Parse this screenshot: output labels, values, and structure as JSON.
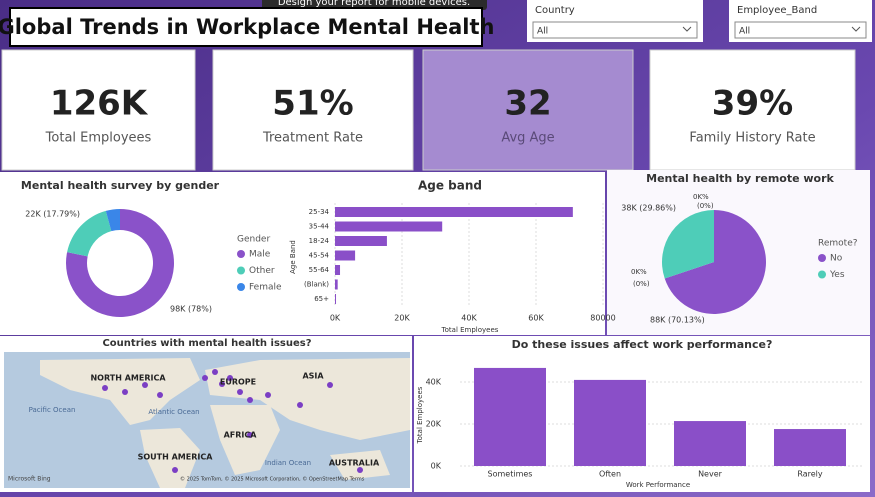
{
  "banner": "Design your report for mobile devices.",
  "title": "Global Trends in Workplace Mental Health",
  "slicers": [
    {
      "label": "Country",
      "value": "All"
    },
    {
      "label": "Employee_Band",
      "value": "All"
    }
  ],
  "kpis": [
    {
      "value": "126K",
      "label": "Total Employees"
    },
    {
      "value": "51%",
      "label": "Treatment Rate"
    },
    {
      "value": "32",
      "label": "Avg Age"
    },
    {
      "value": "39%",
      "label": "Family History Rate"
    }
  ],
  "chart_data": [
    {
      "type": "donut",
      "title": "Mental health survey by gender",
      "legend_title": "Gender",
      "legend": "right",
      "categories": [
        "Male",
        "Other",
        "Female"
      ],
      "values": [
        98000,
        22000,
        5300
      ],
      "value_labels": [
        "98K (78%)",
        "22K (17.79%)",
        null
      ],
      "colors": [
        "#8a52c9",
        "#4ecdb8",
        "#3a86e8"
      ]
    },
    {
      "type": "hbar",
      "title": "Age band",
      "xlabel": "Total Employees",
      "ylabel": "Age Band",
      "color": "#8a4fc8",
      "categories": [
        "25-34",
        "35-44",
        "18-24",
        "45-54",
        "55-64",
        "(Blank)",
        "65+"
      ],
      "values": [
        71000,
        32000,
        15500,
        6000,
        1500,
        800,
        300
      ],
      "xlim": [
        0,
        80000
      ],
      "xticks": [
        {
          "value": 0,
          "label": "0K"
        },
        {
          "value": 20000,
          "label": "20K"
        },
        {
          "value": 40000,
          "label": "40K"
        },
        {
          "value": 60000,
          "label": "60K"
        },
        80000
      ]
    },
    {
      "type": "pie",
      "title": "Mental health by remote work",
      "legend_title": "Remote?",
      "legend": "right",
      "categories": [
        "No",
        "Yes"
      ],
      "values": [
        88000,
        38000
      ],
      "value_labels": [
        "88K (70.13%)",
        "38K (29.86%)"
      ],
      "colors": [
        "#8a52c9",
        "#4ecdb8"
      ],
      "annotations": [
        "0K%",
        "(0%)",
        "0K%",
        "(0%)"
      ]
    },
    {
      "type": "map",
      "title": "Countries with mental health issues?",
      "labels": [
        "NORTH AMERICA",
        "EUROPE",
        "ASIA",
        "Atlantic Ocean",
        "Pacific Ocean",
        "AFRICA",
        "SOUTH AMERICA",
        "Indian Ocean",
        "AUSTRALIA"
      ],
      "logo": "Microsoft Bing",
      "attribution": "© 2025 TomTom, © 2025 Microsoft Corporation, © OpenStreetMap Terms"
    },
    {
      "type": "bar",
      "title": "Do these issues affect work performance?",
      "xlabel": "Work Performance",
      "ylabel": "Total Employees",
      "color": "#8a4fc8",
      "categories": [
        "Sometimes",
        "Often",
        "Never",
        "Rarely"
      ],
      "values": [
        46700,
        41000,
        21400,
        17600
      ],
      "ylim": [
        0,
        50000
      ],
      "yticks": [
        {
          "value": 0,
          "label": "0K"
        },
        {
          "value": 20000,
          "label": "20K"
        },
        {
          "value": 40000,
          "label": "40K"
        }
      ]
    }
  ]
}
